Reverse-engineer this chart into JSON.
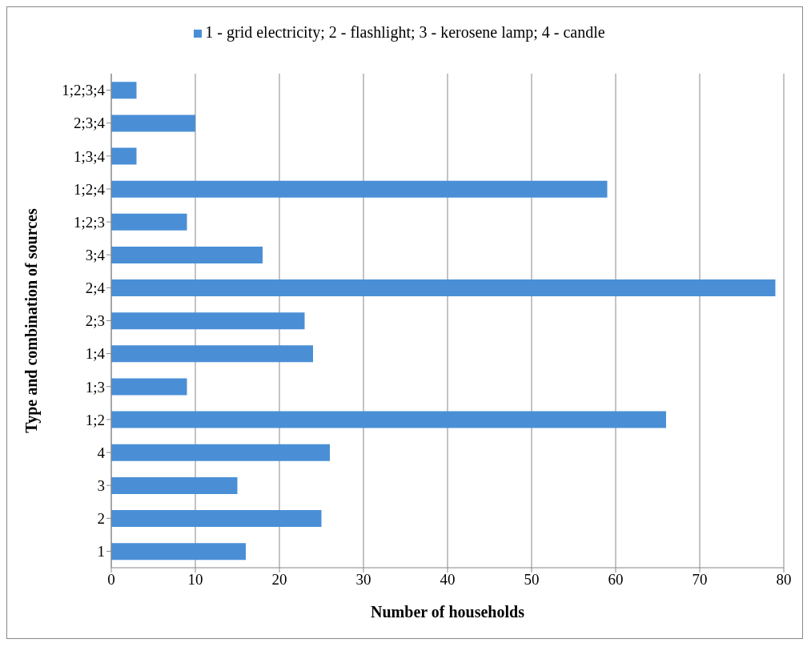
{
  "chart_data": {
    "type": "bar",
    "orientation": "horizontal",
    "xlabel": "Number of households",
    "ylabel": "Type and combination of sources",
    "categories": [
      "1;2;3;4",
      "2;3;4",
      "1;3;4",
      "1;2;4",
      "1;2;3",
      "3;4",
      "2;4",
      "2;3",
      "1;4",
      "1;3",
      "1;2",
      "4",
      "3",
      "2",
      "1"
    ],
    "series": [
      {
        "name": "1 - grid electricity; 2 - flashlight; 3 - kerosene lamp; 4 - candle",
        "color": "#4a8fd6",
        "values": [
          3,
          10,
          3,
          59,
          9,
          18,
          79,
          23,
          24,
          9,
          66,
          26,
          15,
          25,
          16
        ]
      }
    ],
    "xlim": [
      0,
      80
    ],
    "xticks": [
      0,
      10,
      20,
      30,
      40,
      50,
      60,
      70,
      80
    ],
    "grid": "x",
    "legend": "top"
  }
}
